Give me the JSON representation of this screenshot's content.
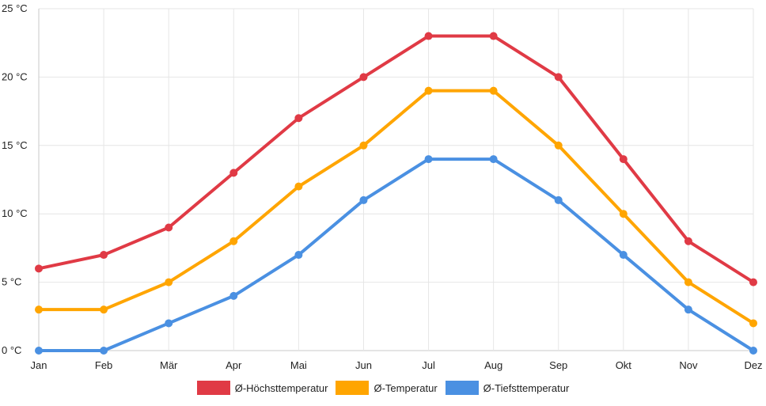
{
  "chart_data": {
    "type": "line",
    "title": "",
    "xlabel": "",
    "ylabel": "",
    "categories": [
      "Jan",
      "Feb",
      "Mär",
      "Apr",
      "Mai",
      "Jun",
      "Jul",
      "Aug",
      "Sep",
      "Okt",
      "Nov",
      "Dez"
    ],
    "ylim": [
      0,
      25
    ],
    "ytick_step": 5,
    "ytick_labels": [
      "0 °C",
      "5 °C",
      "10 °C",
      "15 °C",
      "20 °C",
      "25 °C"
    ],
    "grid": true,
    "legend_position": "bottom-center",
    "series": [
      {
        "name": "Ø-Höchsttemperatur",
        "color": "#e03a45",
        "values": [
          6,
          7,
          9,
          13,
          17,
          20,
          23,
          23,
          20,
          14,
          8,
          5
        ]
      },
      {
        "name": "Ø-Temperatur",
        "color": "#ffa500",
        "values": [
          3,
          3,
          5,
          8,
          12,
          15,
          19,
          19,
          15,
          10,
          5,
          2
        ]
      },
      {
        "name": "Ø-Tiefsttemperatur",
        "color": "#4a90e2",
        "values": [
          0,
          0,
          2,
          4,
          7,
          11,
          14,
          14,
          11,
          7,
          3,
          0
        ]
      }
    ]
  }
}
